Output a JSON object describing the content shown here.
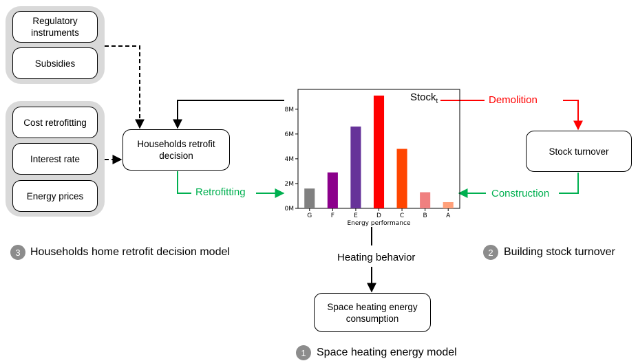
{
  "policy_inputs": {
    "regulatory": "Regulatory instruments",
    "subsidies": "Subsidies"
  },
  "economic_inputs": {
    "cost": "Cost retrofitting",
    "interest": "Interest rate",
    "energy_prices": "Energy prices"
  },
  "decision_box": "Households retrofit decision",
  "turnover_box": "Stock turnover",
  "consumption_box": "Space heating energy consumption",
  "flows": {
    "retrofitting": "Retrofitting",
    "construction": "Construction",
    "demolition": "Demolition",
    "heating_behavior": "Heating behavior",
    "stock_label": "Stock",
    "stock_sub": "t"
  },
  "models": [
    {
      "number": "3",
      "label": "Households home retrofit decision model"
    },
    {
      "number": "2",
      "label": "Building stock turnover"
    },
    {
      "number": "1",
      "label": "Space heating energy model"
    }
  ],
  "colors": {
    "demolition": "#ff0000",
    "flow_green": "#00b050",
    "panel": "#d9d9d9"
  },
  "chart_data": {
    "type": "bar",
    "xlabel": "Energy performance",
    "ylabel": "",
    "categories": [
      "G",
      "F",
      "E",
      "D",
      "C",
      "B",
      "A"
    ],
    "values": [
      1.6,
      2.9,
      6.6,
      9.1,
      4.8,
      1.3,
      0.5
    ],
    "bar_colors": [
      "#808080",
      "#8b008b",
      "#663399",
      "#ff0000",
      "#ff4500",
      "#f08080",
      "#ffa07a"
    ],
    "yticks": [
      0,
      2,
      4,
      6,
      8
    ],
    "ytick_labels": [
      "0M",
      "2M",
      "4M",
      "6M",
      "8M"
    ],
    "ylim": [
      0,
      9.6
    ],
    "grid": false
  }
}
